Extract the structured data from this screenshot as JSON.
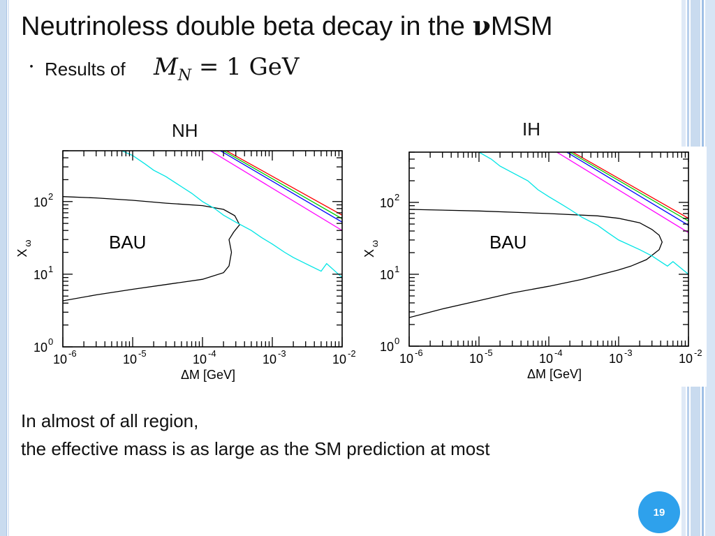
{
  "slide": {
    "title_main": "Neutrinoless double beta decay in the ",
    "title_symbol": "ν",
    "title_tail": "MSM",
    "bullet_marker": "・",
    "bullet_text": "Results of",
    "formula": {
      "lhs": "M",
      "sub": "N",
      "rhs": " = 1 GeV"
    },
    "footer_line1": "In almost of all region,",
    "footer_line2": "the effective mass is as large as the SM prediction at most",
    "page_number": "19"
  },
  "colors": {
    "background": "#ffffff",
    "accent_blue": "#2ea1ec",
    "cyan": "#00e5e5",
    "red": "#ff0000",
    "green": "#00cc00",
    "blue": "#0000ff",
    "magenta": "#ff00ff",
    "black": "#000000"
  },
  "chart_data": [
    {
      "type": "line",
      "title": "NH",
      "xlabel": "ΔM [GeV]",
      "ylabel": "X",
      "ylabel_sub": "ω",
      "x_scale": "log",
      "y_scale": "log",
      "xlim": [
        1e-06,
        0.01
      ],
      "ylim": [
        1,
        500
      ],
      "x_ticks": [
        {
          "base": "10",
          "exp": "-6"
        },
        {
          "base": "10",
          "exp": "-5"
        },
        {
          "base": "10",
          "exp": "-4"
        },
        {
          "base": "10",
          "exp": "-3"
        },
        {
          "base": "10",
          "exp": "-2"
        }
      ],
      "y_ticks": [
        {
          "base": "10",
          "exp": "0"
        },
        {
          "base": "10",
          "exp": "1"
        },
        {
          "base": "10",
          "exp": "2"
        }
      ],
      "annotation": "BAU",
      "series": [
        {
          "color": "#000000",
          "x": [
            1e-06,
            3e-06,
            1e-05,
            3e-05,
            0.0001,
            0.0002,
            0.00029,
            0.00034,
            0.00028,
            0.00024,
            0.00026,
            0.00024,
            0.0002,
            0.0001,
            3e-05,
            1e-05,
            3e-06,
            1e-06
          ],
          "y": [
            117,
            112,
            104,
            95,
            88,
            78,
            64,
            48,
            38,
            30,
            20,
            13,
            10.5,
            8.5,
            7.2,
            6.2,
            5.2,
            4.3
          ]
        },
        {
          "color": "#00e5e5",
          "x": [
            7e-06,
            1e-05,
            1.5e-05,
            2e-05,
            3e-05,
            5e-05,
            7e-05,
            0.0001,
            0.00015,
            0.0002,
            0.0003,
            0.0005,
            0.0007,
            0.001,
            0.0015,
            0.002,
            0.003,
            0.005,
            0.006,
            0.01
          ],
          "y": [
            500,
            430,
            330,
            270,
            220,
            160,
            130,
            100,
            80,
            65,
            52,
            40,
            32,
            26,
            20,
            17,
            14,
            11,
            14,
            9
          ]
        },
        {
          "color": "#ff0000",
          "x": [
            0.00022,
            0.01
          ],
          "y": [
            500,
            65
          ]
        },
        {
          "color": "#00cc00",
          "x": [
            0.0002,
            0.01
          ],
          "y": [
            500,
            58
          ]
        },
        {
          "color": "#0000ff",
          "x": [
            0.00018,
            0.01
          ],
          "y": [
            500,
            52
          ]
        },
        {
          "color": "#ff00ff",
          "x": [
            0.00013,
            0.01
          ],
          "y": [
            500,
            40
          ]
        }
      ]
    },
    {
      "type": "line",
      "title": "IH",
      "xlabel": "ΔM [GeV]",
      "ylabel": "X",
      "ylabel_sub": "ω",
      "x_scale": "log",
      "y_scale": "log",
      "xlim": [
        1e-06,
        0.01
      ],
      "ylim": [
        1,
        500
      ],
      "x_ticks": [
        {
          "base": "10",
          "exp": "-6"
        },
        {
          "base": "10",
          "exp": "-5"
        },
        {
          "base": "10",
          "exp": "-4"
        },
        {
          "base": "10",
          "exp": "-3"
        },
        {
          "base": "10",
          "exp": "-2"
        }
      ],
      "y_ticks": [
        {
          "base": "10",
          "exp": "0"
        },
        {
          "base": "10",
          "exp": "1"
        },
        {
          "base": "10",
          "exp": "2"
        }
      ],
      "annotation": "BAU",
      "series": [
        {
          "color": "#000000",
          "x": [
            1e-06,
            1e-05,
            0.0001,
            0.0005,
            0.001,
            0.002,
            0.003,
            0.0038,
            0.0042,
            0.0038,
            0.0025,
            0.0015,
            0.001,
            0.0003,
            0.0001,
            3e-05,
            1e-05,
            3e-06,
            1e-06
          ],
          "y": [
            80,
            76,
            70,
            65,
            60,
            52,
            42,
            35,
            28,
            22,
            16,
            13,
            11.5,
            8.5,
            6.8,
            5.5,
            4.3,
            3.3,
            2.5
          ]
        },
        {
          "color": "#00e5e5",
          "x": [
            1e-05,
            1.5e-05,
            2e-05,
            3e-05,
            5e-05,
            7e-05,
            0.0001,
            0.00015,
            0.0002,
            0.0003,
            0.0005,
            0.0007,
            0.001,
            0.002,
            0.003,
            0.004,
            0.005,
            0.006,
            0.01
          ],
          "y": [
            500,
            400,
            320,
            260,
            200,
            150,
            120,
            95,
            80,
            62,
            48,
            38,
            30,
            22,
            18,
            15,
            13,
            15,
            10
          ]
        },
        {
          "color": "#ff0000",
          "x": [
            0.00022,
            0.01
          ],
          "y": [
            500,
            60
          ]
        },
        {
          "color": "#00cc00",
          "x": [
            0.0002,
            0.01
          ],
          "y": [
            500,
            55
          ]
        },
        {
          "color": "#0000ff",
          "x": [
            0.00018,
            0.01
          ],
          "y": [
            500,
            48
          ]
        },
        {
          "color": "#ff00ff",
          "x": [
            0.00013,
            0.01
          ],
          "y": [
            500,
            38
          ]
        }
      ]
    }
  ]
}
